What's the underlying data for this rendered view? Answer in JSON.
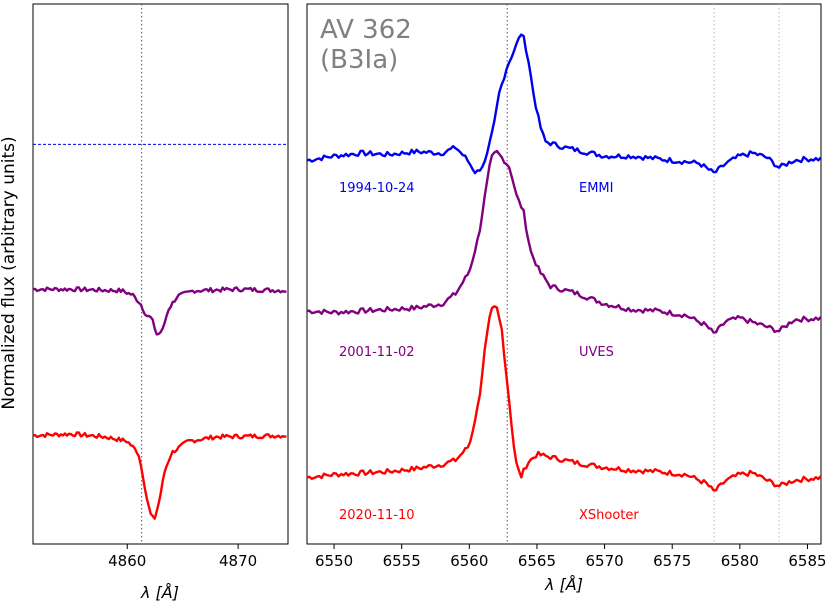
{
  "figure": {
    "ylabel": "Normalized flux (arbitrary units)",
    "star_name": "AV 362",
    "spectral_type": "(B3Ia)",
    "colors": {
      "emmi": "#0000ee",
      "uves": "#800080",
      "xshooter": "#ff0000",
      "star_label": "#808080"
    }
  },
  "chart_data": [
    {
      "type": "line",
      "panel": "left",
      "line_center": 4861.3,
      "xlim": [
        4851.5,
        4874.5
      ],
      "xticks": [
        "4860",
        "4870"
      ],
      "xlabel": "λ [Å]",
      "ylim": [
        -0.18,
        3.55
      ],
      "yticks": [],
      "reference_line": {
        "y": 2.58,
        "style": "dashed",
        "color": "#0000ee"
      },
      "series": [
        {
          "id": "uves_hbeta",
          "color": "#800080",
          "points": [
            [
              4851.5,
              1.58
            ],
            [
              4855.0,
              1.58
            ],
            [
              4859.5,
              1.57
            ],
            [
              4860.5,
              1.54
            ],
            [
              4861.2,
              1.48
            ],
            [
              4861.7,
              1.4
            ],
            [
              4862.2,
              1.38
            ],
            [
              4862.7,
              1.26
            ],
            [
              4863.2,
              1.3
            ],
            [
              4863.7,
              1.44
            ],
            [
              4864.5,
              1.53
            ],
            [
              4866.0,
              1.57
            ],
            [
              4870.0,
              1.58
            ],
            [
              4874.5,
              1.57
            ]
          ]
        },
        {
          "id": "xshooter_hbeta",
          "color": "#ff0000",
          "points": [
            [
              4851.5,
              0.57
            ],
            [
              4855.0,
              0.58
            ],
            [
              4858.0,
              0.56
            ],
            [
              4860.0,
              0.53
            ],
            [
              4861.0,
              0.45
            ],
            [
              4861.4,
              0.3
            ],
            [
              4861.8,
              0.12
            ],
            [
              4862.2,
              0.0
            ],
            [
              4862.5,
              0.0
            ],
            [
              4862.9,
              0.12
            ],
            [
              4863.4,
              0.33
            ],
            [
              4864.0,
              0.45
            ],
            [
              4865.5,
              0.53
            ],
            [
              4868.0,
              0.56
            ],
            [
              4874.5,
              0.57
            ]
          ]
        }
      ]
    },
    {
      "type": "line",
      "panel": "right",
      "rest_wavelength": 6562.8,
      "xlim": [
        6548,
        6586
      ],
      "xticks": [
        "6550",
        "6555",
        "6560",
        "6565",
        "6570",
        "6575",
        "6580",
        "6585"
      ],
      "xlabel": "λ [Å]",
      "ylim": [
        -0.18,
        3.55
      ],
      "yticks": [],
      "dotted_verticals": [
        6562.8,
        6578.1,
        6582.9
      ],
      "series": [
        {
          "name": "EMMI",
          "date": "1994-10-24",
          "color": "#0000ee",
          "points": [
            [
              6548,
              2.47
            ],
            [
              6550,
              2.5
            ],
            [
              6552,
              2.52
            ],
            [
              6554,
              2.51
            ],
            [
              6556,
              2.53
            ],
            [
              6558,
              2.52
            ],
            [
              6559,
              2.56
            ],
            [
              6559.8,
              2.48
            ],
            [
              6560.5,
              2.38
            ],
            [
              6561.2,
              2.46
            ],
            [
              6561.8,
              2.7
            ],
            [
              6562.2,
              2.93
            ],
            [
              6562.8,
              3.12
            ],
            [
              6563.4,
              3.25
            ],
            [
              6563.9,
              3.36
            ],
            [
              6564.3,
              3.2
            ],
            [
              6564.8,
              2.9
            ],
            [
              6565.2,
              2.72
            ],
            [
              6565.6,
              2.6
            ],
            [
              6566.3,
              2.58
            ],
            [
              6567.0,
              2.56
            ],
            [
              6568,
              2.54
            ],
            [
              6570,
              2.5
            ],
            [
              6572,
              2.5
            ],
            [
              6575,
              2.47
            ],
            [
              6577,
              2.45
            ],
            [
              6578.1,
              2.38
            ],
            [
              6579,
              2.45
            ],
            [
              6580,
              2.5
            ],
            [
              6581,
              2.52
            ],
            [
              6582,
              2.49
            ],
            [
              6582.9,
              2.42
            ],
            [
              6584,
              2.47
            ],
            [
              6585,
              2.48
            ],
            [
              6586,
              2.48
            ]
          ]
        },
        {
          "name": "UVES",
          "date": "2001-11-02",
          "color": "#800080",
          "points": [
            [
              6548,
              1.43
            ],
            [
              6550,
              1.42
            ],
            [
              6552,
              1.43
            ],
            [
              6554,
              1.44
            ],
            [
              6556,
              1.45
            ],
            [
              6558,
              1.48
            ],
            [
              6559,
              1.55
            ],
            [
              6560,
              1.7
            ],
            [
              6560.7,
              1.95
            ],
            [
              6561.2,
              2.25
            ],
            [
              6561.6,
              2.48
            ],
            [
              6562.0,
              2.53
            ],
            [
              6562.5,
              2.48
            ],
            [
              6563.0,
              2.42
            ],
            [
              6563.5,
              2.22
            ],
            [
              6564.0,
              2.12
            ],
            [
              6564.5,
              1.85
            ],
            [
              6565.2,
              1.7
            ],
            [
              6566,
              1.6
            ],
            [
              6568,
              1.55
            ],
            [
              6570,
              1.48
            ],
            [
              6572,
              1.44
            ],
            [
              6574,
              1.43
            ],
            [
              6576,
              1.4
            ],
            [
              6577.5,
              1.33
            ],
            [
              6578.1,
              1.27
            ],
            [
              6579,
              1.36
            ],
            [
              6580,
              1.38
            ],
            [
              6581,
              1.35
            ],
            [
              6582,
              1.32
            ],
            [
              6582.9,
              1.29
            ],
            [
              6584,
              1.37
            ],
            [
              6586,
              1.38
            ]
          ]
        },
        {
          "name": "XShooter",
          "date": "2020-11-10",
          "color": "#ff0000",
          "points": [
            [
              6548,
              0.28
            ],
            [
              6550,
              0.3
            ],
            [
              6552,
              0.31
            ],
            [
              6554,
              0.32
            ],
            [
              6556,
              0.34
            ],
            [
              6558,
              0.37
            ],
            [
              6559,
              0.4
            ],
            [
              6560,
              0.5
            ],
            [
              6560.7,
              0.8
            ],
            [
              6561.2,
              1.2
            ],
            [
              6561.6,
              1.43
            ],
            [
              6562.0,
              1.46
            ],
            [
              6562.4,
              1.3
            ],
            [
              6562.9,
              0.85
            ],
            [
              6563.4,
              0.4
            ],
            [
              6563.8,
              0.28
            ],
            [
              6564.3,
              0.38
            ],
            [
              6565,
              0.44
            ],
            [
              6566,
              0.42
            ],
            [
              6567,
              0.4
            ],
            [
              6568,
              0.38
            ],
            [
              6570,
              0.35
            ],
            [
              6572,
              0.33
            ],
            [
              6574,
              0.32
            ],
            [
              6576,
              0.3
            ],
            [
              6577.5,
              0.24
            ],
            [
              6578.1,
              0.18
            ],
            [
              6579,
              0.26
            ],
            [
              6580,
              0.3
            ],
            [
              6581,
              0.31
            ],
            [
              6582,
              0.26
            ],
            [
              6582.9,
              0.22
            ],
            [
              6584,
              0.26
            ],
            [
              6586,
              0.28
            ]
          ]
        }
      ]
    }
  ]
}
